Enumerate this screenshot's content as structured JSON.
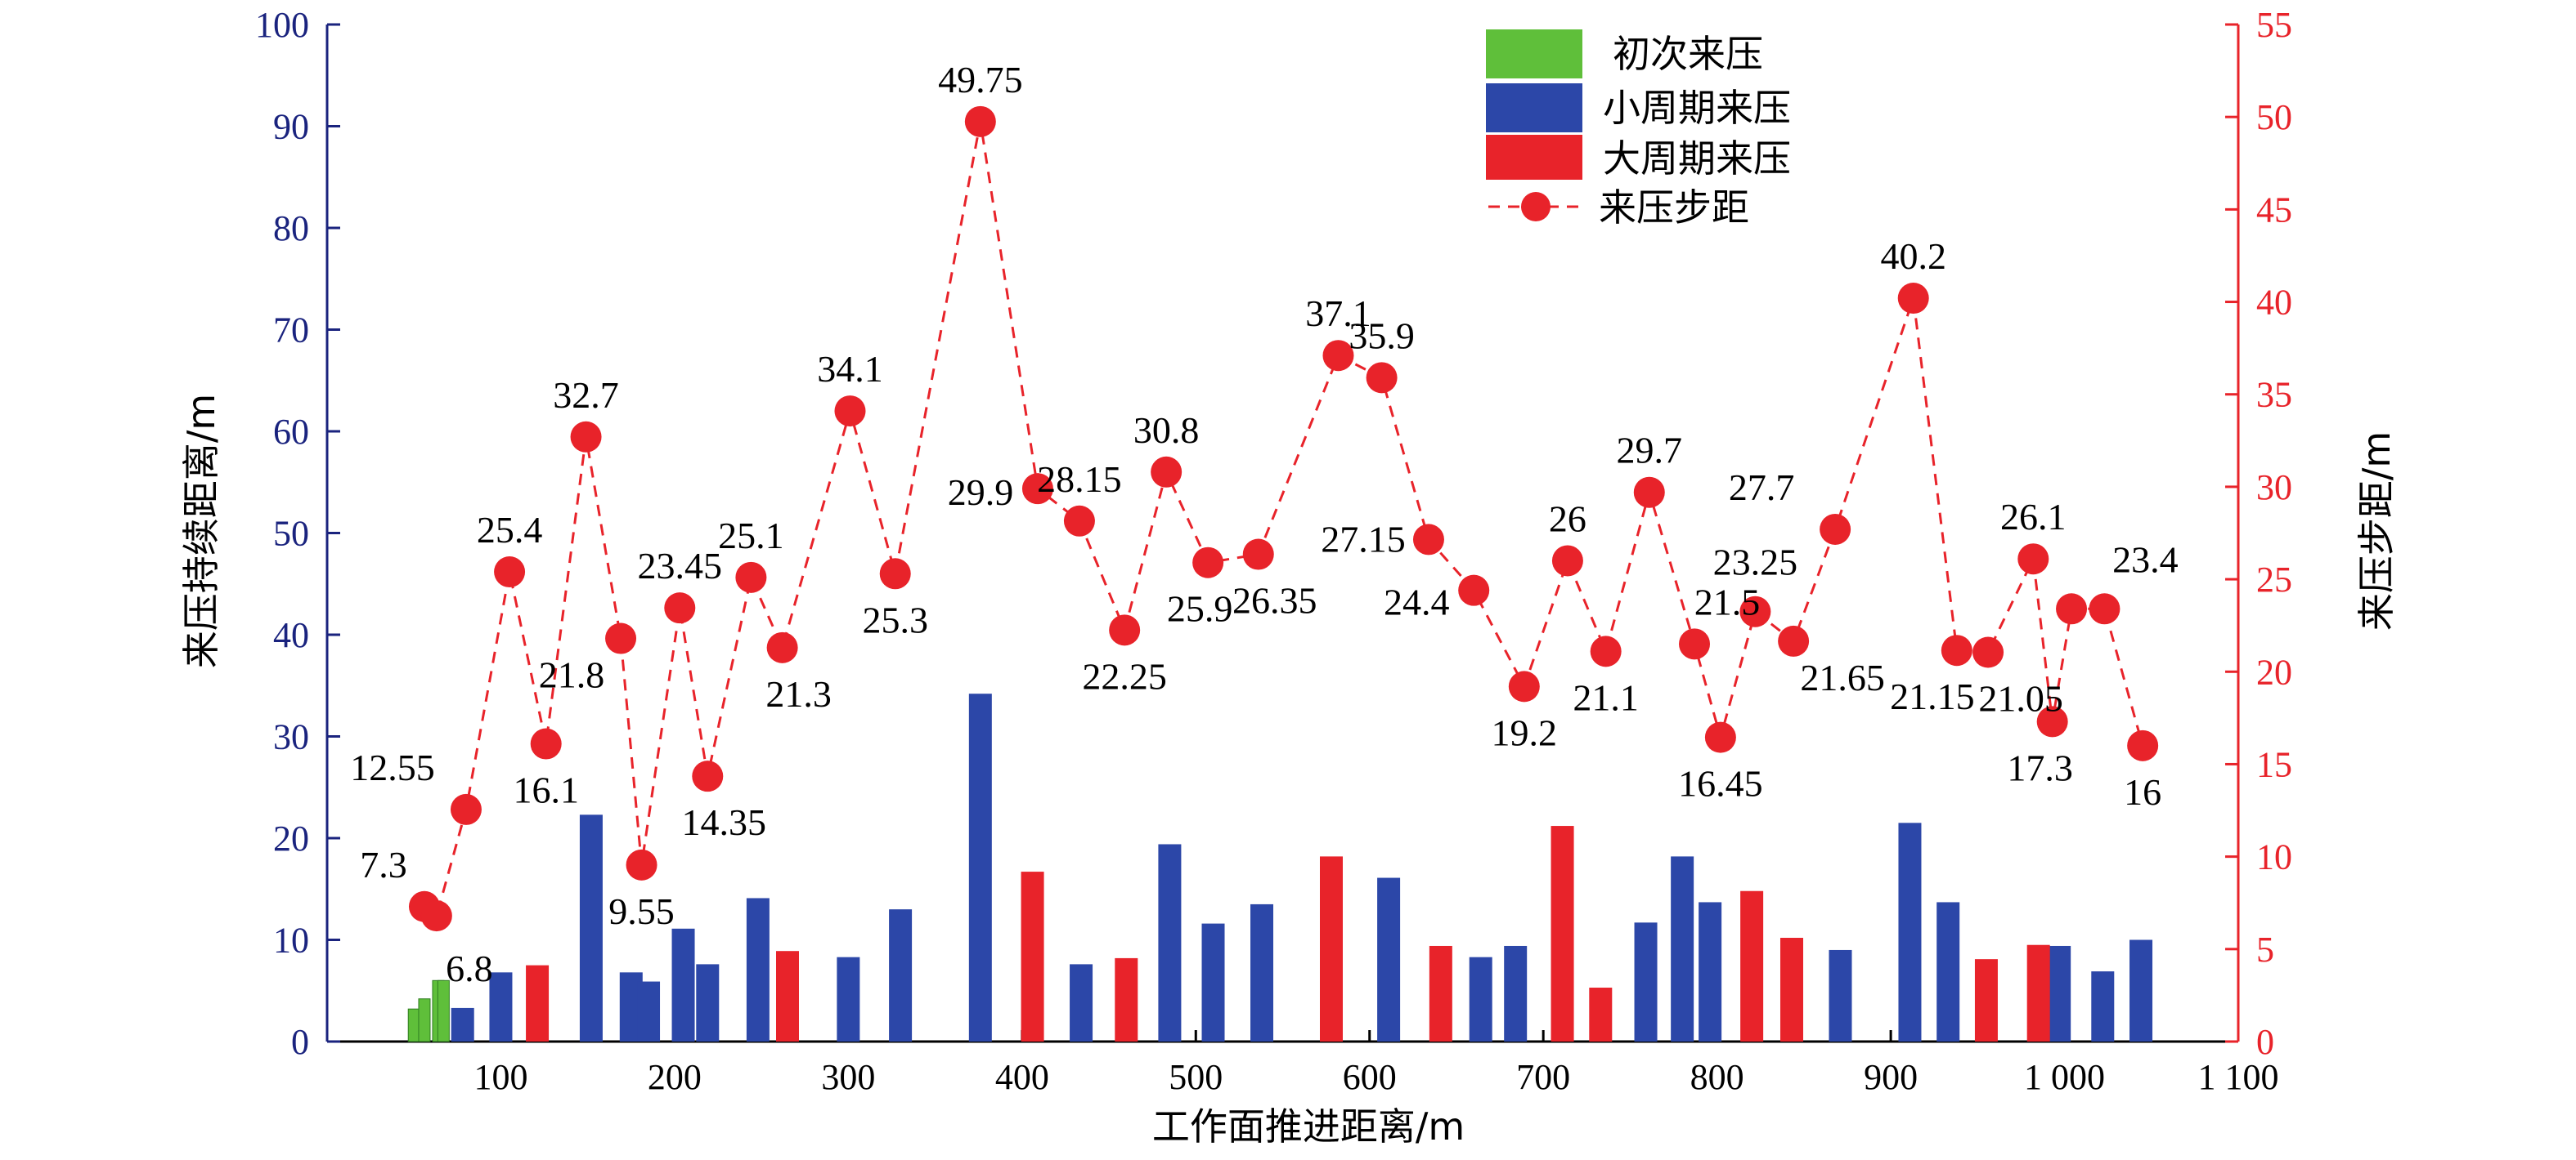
{
  "chart_data": {
    "type": "bar",
    "xlabel": "工作面推进距离/m",
    "ylabel_left": "来压持续距离/m",
    "ylabel_right": "来压步距/m",
    "xlim": [
      0,
      1100
    ],
    "ylim_left": [
      0,
      100
    ],
    "ylim_right": [
      0,
      55
    ],
    "x_ticks": [
      100,
      200,
      300,
      400,
      500,
      600,
      700,
      800,
      900,
      1000,
      1100
    ],
    "x_tick_labels": [
      "100",
      "200",
      "300",
      "400",
      "500",
      "600",
      "700",
      "800",
      "900",
      "1 000",
      "1 100"
    ],
    "y_left_ticks": [
      0,
      10,
      20,
      30,
      40,
      50,
      60,
      70,
      80,
      90,
      100
    ],
    "y_right_ticks": [
      0,
      5,
      10,
      15,
      20,
      25,
      30,
      35,
      40,
      45,
      50,
      55
    ],
    "legend": [
      {
        "label": "初次来压",
        "color": "#5fbf3a",
        "kind": "bar"
      },
      {
        "label": "小周期来压",
        "color": "#2c47a8",
        "kind": "bar"
      },
      {
        "label": "大周期来压",
        "color": "#e8232a",
        "kind": "bar"
      },
      {
        "label": "来压步距",
        "color": "#e8232a",
        "kind": "line-marker"
      }
    ],
    "legend_position": "top-center",
    "series": [
      {
        "name": "初次来压",
        "color": "#5fbf3a",
        "x": [
          50,
          56,
          64,
          67
        ],
        "values": [
          3.2,
          4.2,
          6.0,
          6.0
        ]
      },
      {
        "name": "小周期来压",
        "color": "#2c47a8",
        "x": [
          78,
          100,
          152,
          175,
          185,
          205,
          219,
          248,
          300,
          330,
          376,
          434,
          485,
          510,
          538,
          611,
          664,
          684,
          759,
          780,
          796,
          871,
          911,
          933,
          997,
          1022,
          1044
        ],
        "values": [
          3.3,
          6.8,
          22.3,
          6.8,
          5.9,
          11.1,
          7.6,
          14.1,
          8.3,
          13.0,
          34.2,
          7.6,
          19.4,
          11.6,
          13.5,
          16.1,
          8.3,
          9.4,
          11.7,
          18.2,
          13.7,
          9.0,
          21.5,
          13.7,
          9.4,
          6.9,
          10.0
        ]
      },
      {
        "name": "大周期来压",
        "color": "#e8232a",
        "x": [
          121,
          265,
          406,
          460,
          578,
          641,
          711,
          733,
          820,
          843,
          955,
          985
        ],
        "values": [
          7.5,
          8.9,
          16.7,
          8.2,
          18.2,
          9.4,
          21.2,
          5.3,
          14.8,
          10.2,
          8.1,
          9.5
        ]
      },
      {
        "name": "来压步距",
        "color": "#e8232a",
        "axis": "right",
        "x": [
          56,
          63,
          80,
          105,
          126,
          149,
          169,
          181,
          203,
          219,
          244,
          262,
          301,
          327,
          376,
          409,
          433,
          459,
          483,
          507,
          536,
          582,
          607,
          634,
          660,
          689,
          714,
          736,
          761,
          787,
          802,
          822,
          844,
          868,
          913,
          938,
          956,
          982,
          993,
          1004,
          1023,
          1045
        ],
        "values": [
          7.3,
          6.8,
          12.55,
          25.4,
          16.1,
          32.7,
          21.8,
          9.55,
          23.45,
          14.35,
          25.1,
          21.3,
          34.1,
          25.3,
          49.75,
          29.9,
          28.15,
          22.25,
          30.8,
          25.9,
          26.35,
          37.1,
          35.9,
          27.15,
          24.4,
          19.2,
          26,
          21.1,
          29.7,
          21.5,
          16.45,
          23.25,
          21.65,
          27.7,
          40.2,
          21.15,
          21.05,
          26.1,
          17.3,
          23.4,
          23.4,
          16
        ],
        "labels": [
          "7.3",
          "6.8",
          "12.55",
          "25.4",
          "16.1",
          "32.7",
          "21.8",
          "9.55",
          "23.45",
          "14.35",
          "25.1",
          "21.3",
          "34.1",
          "25.3",
          "49.75",
          "29.9",
          "28.15",
          "22.25",
          "30.8",
          "25.9",
          "26.35",
          "37.1",
          "35.9",
          "27.15",
          "24.4",
          "19.2",
          "26",
          "21.1",
          "29.7",
          "21.5",
          "16.45",
          "23.25",
          "21.65",
          "27.7",
          "40.2",
          "21.15",
          "21.05",
          "26.1",
          "17.3",
          "",
          "23.4",
          "16"
        ]
      }
    ]
  }
}
